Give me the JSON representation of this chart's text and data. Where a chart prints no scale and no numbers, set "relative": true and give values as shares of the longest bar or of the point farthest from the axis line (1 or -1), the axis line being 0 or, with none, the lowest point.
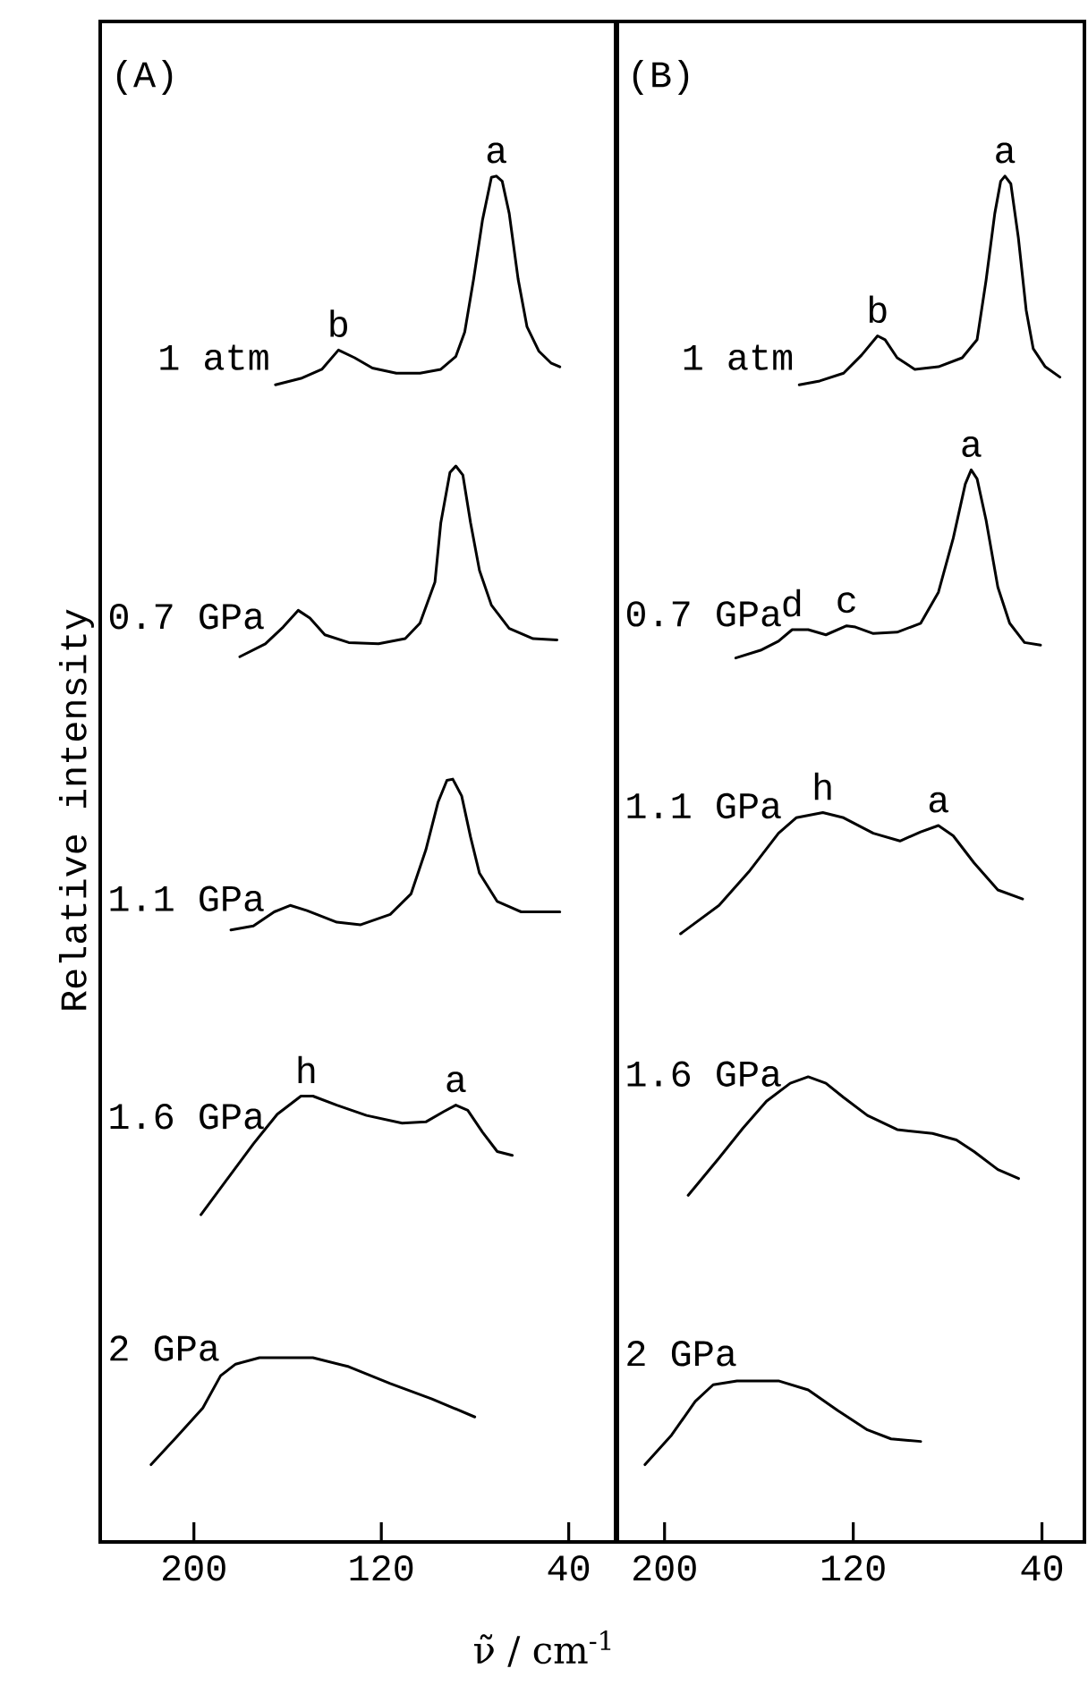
{
  "chart_data": [
    {
      "type": "line",
      "title": "(A)",
      "ylabel": "Relative intensity",
      "xlabel": "ν̃ / cm$^{-1}$",
      "relative": true,
      "tick_labels": "x",
      "xlim": [
        240,
        20
      ],
      "xticks": [
        200,
        120,
        40
      ],
      "series": [
        {
          "name": "1 atm",
          "color": "#000000",
          "x": [
            165.2,
            154.3,
            145.4,
            138.3,
            131.4,
            123.8,
            113.6,
            103.5,
            94.6,
            88.2,
            84.4,
            80.6,
            76.8,
            73.0,
            70.9,
            68.4,
            65.4,
            61.6,
            57.8,
            52.7,
            47.6,
            43.8
          ],
          "values": [
            0.838,
            0.843,
            0.85,
            0.865,
            0.859,
            0.851,
            0.847,
            0.847,
            0.85,
            0.86,
            0.879,
            0.92,
            0.966,
            0.999,
            1.0,
            0.996,
            0.971,
            0.92,
            0.883,
            0.864,
            0.855,
            0.852
          ]
        },
        {
          "name": "0.7 GPa",
          "color": "#000000",
          "x": [
            180.4,
            169.5,
            161.9,
            155.5,
            150.5,
            144.1,
            133.9,
            121.2,
            109.8,
            103.5,
            97.1,
            94.6,
            90.7,
            88.2,
            85.2,
            81.9,
            78.1,
            73.0,
            65.4,
            55.2,
            45.0
          ],
          "values": [
            0.627,
            0.637,
            0.65,
            0.663,
            0.657,
            0.644,
            0.638,
            0.637,
            0.641,
            0.653,
            0.685,
            0.731,
            0.77,
            0.775,
            0.768,
            0.731,
            0.694,
            0.667,
            0.649,
            0.641,
            0.64
          ]
        },
        {
          "name": "1.1 GPa",
          "color": "#000000",
          "x": [
            184.2,
            174.6,
            165.7,
            158.9,
            151.7,
            139.0,
            128.8,
            116.2,
            107.3,
            101.0,
            95.8,
            92.0,
            89.5,
            85.7,
            81.9,
            78.1,
            70.5,
            60.3,
            43.8
          ],
          "values": [
            0.415,
            0.418,
            0.429,
            0.434,
            0.43,
            0.421,
            0.419,
            0.427,
            0.443,
            0.477,
            0.514,
            0.531,
            0.532,
            0.519,
            0.487,
            0.459,
            0.437,
            0.429,
            0.429
          ]
        },
        {
          "name": "1.6 GPa",
          "color": "#000000",
          "x": [
            197.0,
            184.8,
            174.6,
            164.4,
            154.3,
            149.2,
            139.0,
            126.3,
            111.1,
            101.0,
            93.3,
            88.2,
            83.1,
            76.8,
            70.5,
            64.1
          ],
          "values": [
            0.194,
            0.224,
            0.249,
            0.272,
            0.286,
            0.286,
            0.279,
            0.271,
            0.265,
            0.266,
            0.274,
            0.279,
            0.275,
            0.258,
            0.243,
            0.24
          ]
        },
        {
          "name": "2 GPa",
          "color": "#000000",
          "x": [
            218.3,
            207.6,
            196.2,
            188.6,
            182.2,
            172.0,
            149.2,
            133.9,
            116.2,
            98.4,
            80.1
          ],
          "values": [
            0.0,
            0.021,
            0.044,
            0.069,
            0.078,
            0.083,
            0.083,
            0.076,
            0.063,
            0.051,
            0.037
          ]
        }
      ],
      "annotations": [
        {
          "text": "a",
          "x": 70.9,
          "y": 1.0
        },
        {
          "text": "b",
          "x": 138.3,
          "y": 0.865
        },
        {
          "text": "h",
          "x": 152,
          "y": 0.286
        },
        {
          "text": "a",
          "x": 88.2,
          "y": 0.279
        }
      ]
    },
    {
      "type": "line",
      "title": "(B)",
      "relative": true,
      "tick_labels": "x",
      "xlim": [
        220,
        22
      ],
      "xticks": [
        200,
        120,
        40
      ],
      "series": [
        {
          "name": "1 atm",
          "color": "#000000",
          "x": [
            142.9,
            134.2,
            124.1,
            116.5,
            109.7,
            106.5,
            101.4,
            93.9,
            83.9,
            73.8,
            67.5,
            63.7,
            60.0,
            57.5,
            55.7,
            53.2,
            50.0,
            46.7,
            43.7,
            38.6,
            32.4
          ],
          "values": [
            0.838,
            0.841,
            0.847,
            0.861,
            0.876,
            0.873,
            0.859,
            0.85,
            0.852,
            0.859,
            0.873,
            0.919,
            0.971,
            0.996,
            1.0,
            0.994,
            0.952,
            0.896,
            0.866,
            0.852,
            0.844
          ]
        },
        {
          "name": "0.7 GPa",
          "color": "#000000",
          "x": [
            169.8,
            159.3,
            151.7,
            145.9,
            139.1,
            131.6,
            122.8,
            119.1,
            111.5,
            101.4,
            91.4,
            83.9,
            77.6,
            72.5,
            70.0,
            67.5,
            63.7,
            58.7,
            53.7,
            47.4,
            40.6
          ],
          "values": [
            0.626,
            0.632,
            0.639,
            0.648,
            0.648,
            0.644,
            0.651,
            0.65,
            0.645,
            0.646,
            0.653,
            0.677,
            0.719,
            0.761,
            0.772,
            0.765,
            0.733,
            0.681,
            0.653,
            0.638,
            0.636
          ]
        },
        {
          "name": "1.1 GPa",
          "color": "#000000",
          "x": [
            193.2,
            176.9,
            164.3,
            151.7,
            144.2,
            132.9,
            124.1,
            111.5,
            100.2,
            91.4,
            83.9,
            77.6,
            68.8,
            58.7,
            48.2
          ],
          "values": [
            0.412,
            0.434,
            0.46,
            0.49,
            0.502,
            0.506,
            0.502,
            0.49,
            0.484,
            0.491,
            0.496,
            0.488,
            0.467,
            0.446,
            0.439
          ]
        },
        {
          "name": "1.6 GPa",
          "color": "#000000",
          "x": [
            190.0,
            176.9,
            166.8,
            156.8,
            146.7,
            139.1,
            131.6,
            124.1,
            114.0,
            101.4,
            86.4,
            76.3,
            68.8,
            58.7,
            49.9
          ],
          "values": [
            0.209,
            0.238,
            0.261,
            0.282,
            0.296,
            0.301,
            0.296,
            0.285,
            0.271,
            0.26,
            0.257,
            0.252,
            0.243,
            0.229,
            0.222
          ]
        },
        {
          "name": "2 GPa",
          "color": "#000000",
          "x": [
            208.3,
            197.0,
            187.0,
            179.4,
            169.3,
            151.7,
            139.1,
            126.6,
            114.0,
            104.0,
            91.4
          ],
          "values": [
            0.0,
            0.023,
            0.049,
            0.062,
            0.065,
            0.065,
            0.058,
            0.042,
            0.027,
            0.02,
            0.018
          ]
        }
      ],
      "annotations": [
        {
          "text": "a",
          "x": 55.7,
          "y": 1.0
        },
        {
          "text": "b",
          "x": 109.7,
          "y": 0.876
        },
        {
          "text": "a",
          "x": 70.0,
          "y": 0.772
        },
        {
          "text": "d",
          "x": 145.9,
          "y": 0.648
        },
        {
          "text": "c",
          "x": 122.8,
          "y": 0.651
        },
        {
          "text": "h",
          "x": 132.9,
          "y": 0.506
        },
        {
          "text": "a",
          "x": 83.9,
          "y": 0.496
        }
      ]
    }
  ]
}
